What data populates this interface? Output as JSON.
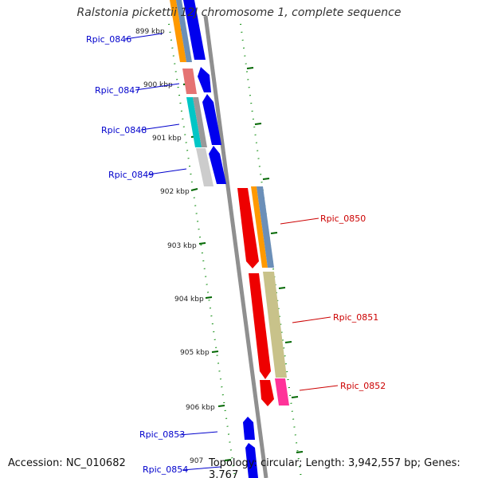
{
  "title": "Ralstonia pickettii 12J chromosome 1, complete sequence",
  "accession": "Accession: NC_010682",
  "stats": "Topology: circular; Length: 3,942,557 bp; Genes: 3,767",
  "ticks": [
    "899 kbp",
    "900 kbp",
    "901 kbp",
    "902 kbp",
    "903 kbp",
    "904 kbp",
    "905 kbp",
    "906 kbp",
    "907"
  ],
  "genes_left": [
    "Rpic_0846",
    "Rpic_0847",
    "Rpic_0848",
    "Rpic_0849",
    "Rpic_0853",
    "Rpic_0854"
  ],
  "genes_right": [
    "Rpic_0850",
    "Rpic_0851",
    "Rpic_0852"
  ],
  "colors": {
    "forward_label": "#0000cc",
    "reverse_label": "#cc0000",
    "backbone": "#888888",
    "tick": "#006600"
  }
}
